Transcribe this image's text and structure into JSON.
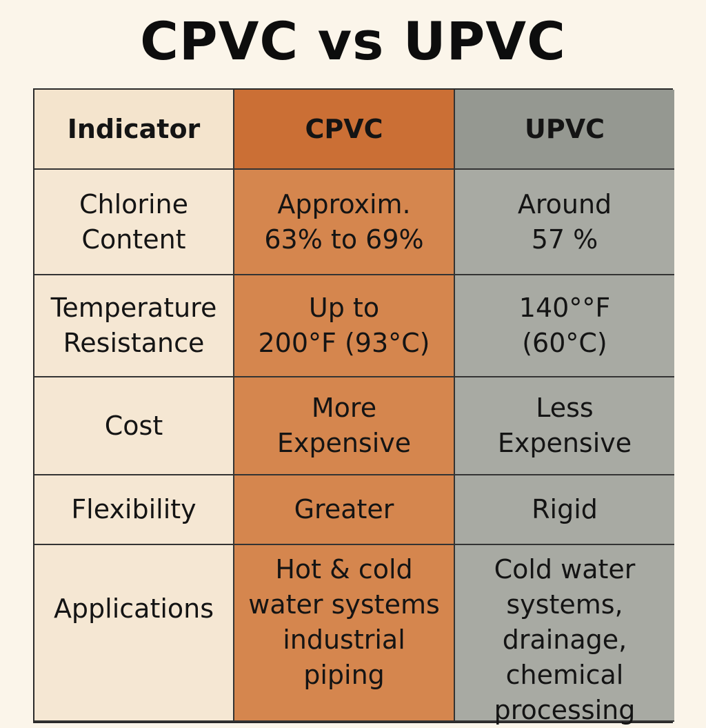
{
  "title": "CPVC vs UPVC",
  "table": {
    "headers": [
      "Indicator",
      "CPVC",
      "UPVC"
    ],
    "rows": [
      {
        "indicator": "Chlorine\nContent",
        "cpvc": "Approxim.\n63% to 69%",
        "upvc": "Around\n57 %"
      },
      {
        "indicator": "Temperature\nResistance",
        "cpvc": "Up to\n200°F (93°C)",
        "upvc": "140°°F\n(60°C)"
      },
      {
        "indicator": "Cost",
        "cpvc": "More\nExpensive",
        "upvc": "Less\nExpensive"
      },
      {
        "indicator": "Flexibility",
        "cpvc": "Greater",
        "upvc": "Rigid"
      },
      {
        "indicator": "Applications",
        "cpvc": "Hot & cold\nwater systems\nindustrial\npiping",
        "upvc": "Cold water\nsystems,\ndrainage,\nchemical\nprocessing"
      }
    ]
  },
  "colors": {
    "background": "#fbf5ea",
    "indicator_column": "#f5e7d3",
    "cpvc_column": "#d5864e",
    "upvc_column": "#a8aaa3"
  }
}
